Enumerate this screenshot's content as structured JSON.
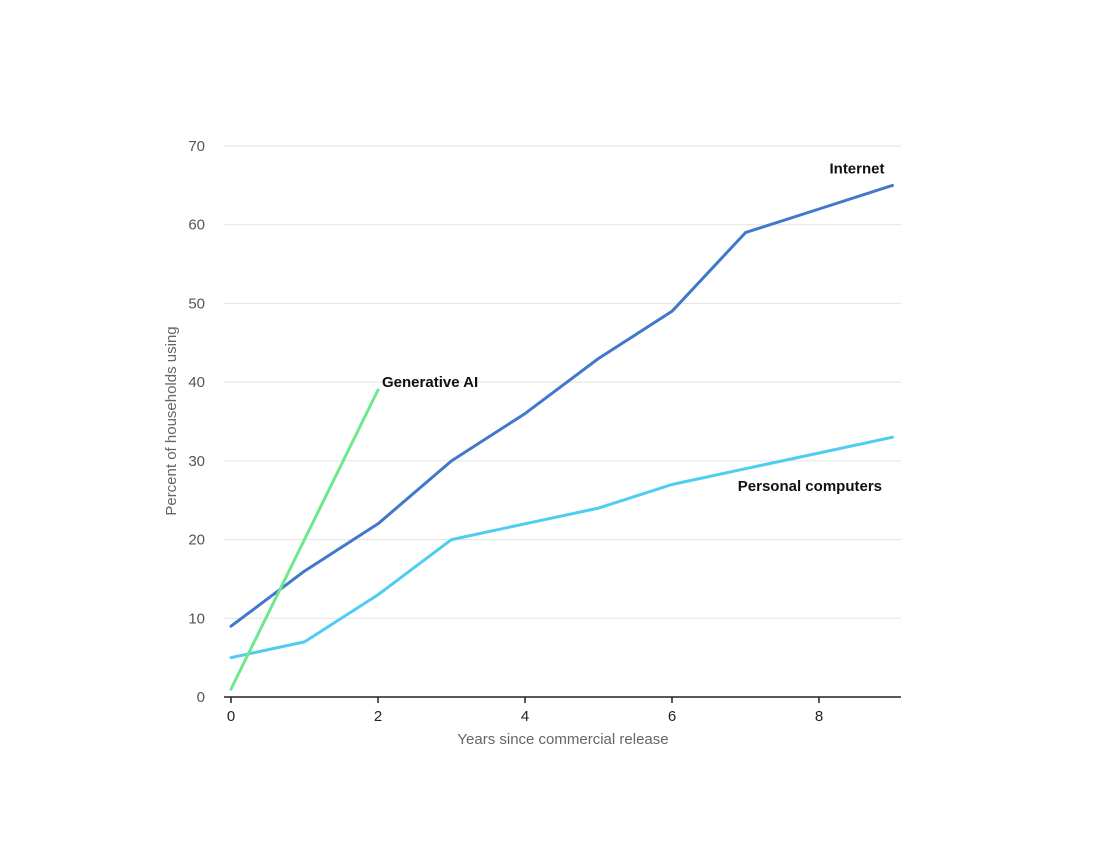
{
  "chart_data": {
    "type": "line",
    "xlabel": "Years since commercial release",
    "ylabel": "Percent of households using",
    "xlim": [
      0,
      9
    ],
    "ylim": [
      0,
      70
    ],
    "x_ticks": [
      0,
      2,
      4,
      6,
      8
    ],
    "y_ticks": [
      0,
      10,
      20,
      30,
      40,
      50,
      60,
      70
    ],
    "grid": true,
    "legend": "none",
    "series": [
      {
        "name": "Internet",
        "color": "#4178cc",
        "x": [
          0,
          1,
          2,
          3,
          4,
          5,
          6,
          7,
          8,
          9
        ],
        "y": [
          9,
          16,
          22,
          30,
          36,
          43,
          49,
          59,
          62,
          65
        ]
      },
      {
        "name": "Personal computers",
        "color": "#4fcdf0",
        "x": [
          0,
          1,
          2,
          3,
          4,
          5,
          6,
          7,
          8,
          9
        ],
        "y": [
          5,
          7,
          13,
          20,
          22,
          24,
          27,
          29,
          31,
          33
        ]
      },
      {
        "name": "Generative AI",
        "color": "#6ee88c",
        "x": [
          0,
          2
        ],
        "y": [
          1,
          39
        ]
      }
    ]
  }
}
